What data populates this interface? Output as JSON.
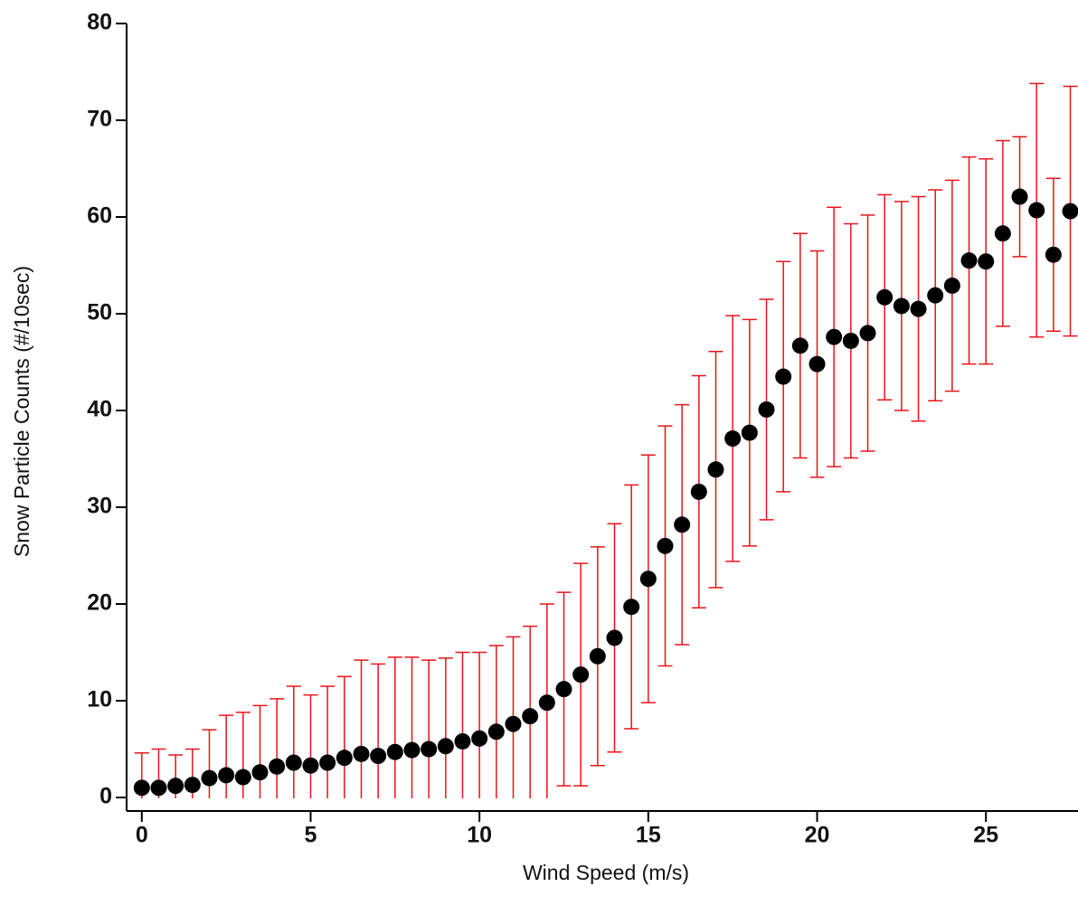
{
  "chart_data": {
    "type": "scatter",
    "x_label": "Wind Speed (m/s)",
    "y_label": "Snow Particle Counts (#/10sec)",
    "x": [
      0,
      0.5,
      1,
      1.5,
      2,
      2.5,
      3,
      3.5,
      4,
      4.5,
      5,
      5.5,
      6,
      6.5,
      7,
      7.5,
      8,
      8.5,
      9,
      9.5,
      10,
      10.5,
      11,
      11.5,
      12,
      12.5,
      13,
      13.5,
      14,
      14.5,
      15,
      15.5,
      16,
      16.5,
      17,
      17.5,
      18,
      18.5,
      19,
      19.5,
      20,
      20.5,
      21,
      21.5,
      22,
      22.5,
      23,
      23.5,
      24,
      24.5,
      25,
      25.5,
      26,
      26.5,
      27,
      27.5
    ],
    "values": [
      1.0,
      1.0,
      1.2,
      1.3,
      2.0,
      2.3,
      2.1,
      2.6,
      3.2,
      3.6,
      3.3,
      3.6,
      4.1,
      4.5,
      4.3,
      4.7,
      4.9,
      5.0,
      5.3,
      5.8,
      6.1,
      6.8,
      7.6,
      8.4,
      9.8,
      11.2,
      12.7,
      14.6,
      16.5,
      19.7,
      22.6,
      26.0,
      28.2,
      31.6,
      33.9,
      37.1,
      37.7,
      40.1,
      43.5,
      46.7,
      44.8,
      47.6,
      47.2,
      48.0,
      51.7,
      50.8,
      50.5,
      51.9,
      52.9,
      55.5,
      55.4,
      58.3,
      62.1,
      60.7,
      56.1,
      60.6
    ],
    "errors": [
      3.6,
      4.0,
      3.2,
      3.7,
      5.0,
      6.2,
      6.7,
      6.9,
      7.0,
      7.9,
      7.3,
      7.9,
      8.4,
      9.7,
      9.5,
      9.8,
      9.6,
      9.2,
      9.1,
      9.2,
      8.9,
      8.9,
      9.0,
      9.3,
      10.2,
      10.0,
      11.5,
      11.3,
      11.8,
      12.6,
      12.8,
      12.4,
      12.4,
      12.0,
      12.2,
      12.7,
      11.7,
      11.4,
      11.9,
      11.6,
      11.7,
      13.4,
      12.1,
      12.2,
      10.6,
      10.8,
      11.6,
      10.9,
      10.9,
      10.7,
      10.6,
      9.6,
      6.2,
      13.1,
      7.9,
      12.9
    ],
    "color": "#000000",
    "error_color": "#e8141b",
    "xlim": [
      -0.45,
      27.7
    ],
    "xticks": [
      0,
      5,
      10,
      15,
      20,
      25
    ],
    "ylim": [
      -1.4,
      80
    ],
    "yticks": [
      0,
      10,
      20,
      30,
      40,
      50,
      60,
      70,
      80
    ]
  }
}
